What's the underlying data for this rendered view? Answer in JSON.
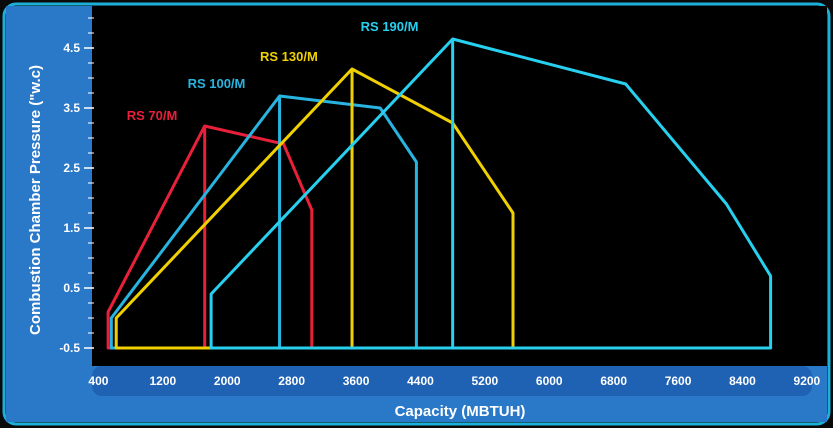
{
  "chart_data": {
    "type": "line",
    "title": "",
    "xlabel": "Capacity (MBTUH)",
    "ylabel": "Combustion Chamber Pressure (\"w.c)",
    "xlim": [
      320,
      9450
    ],
    "ylim": [
      -0.8,
      5.2
    ],
    "x_ticks": [
      400,
      1200,
      2000,
      2800,
      3600,
      4400,
      5200,
      6000,
      6800,
      7600,
      8400,
      9200
    ],
    "y_ticks": [
      -0.5,
      0.5,
      1.5,
      2.5,
      3.5,
      4.5
    ],
    "grid": false,
    "legend": "none",
    "colors": {
      "background": "#0a0a0a",
      "frame": "#1ab0d8",
      "axis_band": "#2a78c8",
      "text": "#ffffff"
    },
    "series": [
      {
        "name": "RS 70/M",
        "color": "#e8203a",
        "points": [
          [
            520,
            -0.5
          ],
          [
            520,
            0.1
          ],
          [
            1720,
            3.2
          ],
          [
            2700,
            2.9
          ],
          [
            3050,
            1.8
          ],
          [
            3050,
            -0.5
          ]
        ],
        "divider_x": 1720
      },
      {
        "name": "RS 100/M",
        "color": "#28b4e0",
        "points": [
          [
            560,
            -0.5
          ],
          [
            560,
            0.0
          ],
          [
            2650,
            3.7
          ],
          [
            3900,
            3.5
          ],
          [
            4350,
            2.6
          ],
          [
            4350,
            -0.5
          ]
        ],
        "divider_x": 2650
      },
      {
        "name": "RS 130/M",
        "color": "#f0d000",
        "points": [
          [
            620,
            -0.5
          ],
          [
            620,
            0.0
          ],
          [
            3550,
            4.15
          ],
          [
            4800,
            3.25
          ],
          [
            5550,
            1.75
          ],
          [
            5550,
            -0.5
          ]
        ],
        "divider_x": 3550
      },
      {
        "name": "RS 190/M",
        "color": "#28d0f0",
        "points": [
          [
            1800,
            -0.5
          ],
          [
            1800,
            0.4
          ],
          [
            4800,
            4.65
          ],
          [
            6950,
            3.9
          ],
          [
            8200,
            1.9
          ],
          [
            8750,
            0.7
          ],
          [
            8750,
            -0.5
          ]
        ],
        "divider_x": 4800
      }
    ]
  }
}
